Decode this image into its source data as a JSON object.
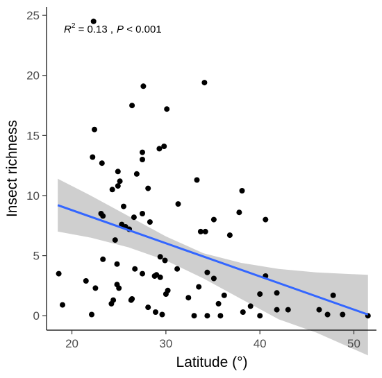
{
  "chart_data": {
    "type": "scatter",
    "xlabel": "Latitude (°)",
    "ylabel": "Insect richness",
    "xlim": [
      17.3,
      52.4
    ],
    "ylim": [
      -1.2,
      25.7
    ],
    "x_ticks": [
      20,
      30,
      40,
      50
    ],
    "y_ticks": [
      0,
      5,
      10,
      15,
      20,
      25
    ],
    "grid": false,
    "annotation": {
      "r_label": "R",
      "r_exp": "2",
      "r_value": " = 0.13 ,",
      "p_label": "P",
      "p_value": " < 0.001"
    },
    "colors": {
      "points": "#000000",
      "fit_line": "#3366ff",
      "ci_band": "#bfbfbf"
    },
    "fit": {
      "x": [
        18.5,
        51.5
      ],
      "y": [
        9.2,
        0.1
      ]
    },
    "ci_band": {
      "x": [
        18.5,
        22,
        26,
        30,
        34,
        38,
        42,
        46,
        51.5
      ],
      "lower": [
        7.0,
        6.5,
        5.7,
        4.6,
        3.1,
        1.4,
        -0.3,
        -1.4,
        -3.3
      ],
      "upper": [
        11.4,
        10.0,
        8.3,
        6.6,
        5.2,
        4.4,
        3.9,
        3.6,
        3.4
      ]
    },
    "points": [
      {
        "x": 22.3,
        "y": 24.5
      },
      {
        "x": 34.1,
        "y": 19.4
      },
      {
        "x": 27.6,
        "y": 19.1
      },
      {
        "x": 26.4,
        "y": 17.5
      },
      {
        "x": 30.1,
        "y": 17.2
      },
      {
        "x": 22.4,
        "y": 15.5
      },
      {
        "x": 29.8,
        "y": 14.1
      },
      {
        "x": 29.3,
        "y": 13.9
      },
      {
        "x": 27.5,
        "y": 13.6
      },
      {
        "x": 22.2,
        "y": 13.2
      },
      {
        "x": 27.5,
        "y": 13.0
      },
      {
        "x": 23.2,
        "y": 12.7
      },
      {
        "x": 24.9,
        "y": 12.0
      },
      {
        "x": 26.9,
        "y": 11.8
      },
      {
        "x": 25.1,
        "y": 11.2
      },
      {
        "x": 33.3,
        "y": 11.3
      },
      {
        "x": 24.9,
        "y": 10.8
      },
      {
        "x": 24.3,
        "y": 10.5
      },
      {
        "x": 28.1,
        "y": 10.6
      },
      {
        "x": 38.1,
        "y": 10.4
      },
      {
        "x": 31.3,
        "y": 9.3
      },
      {
        "x": 25.5,
        "y": 9.1
      },
      {
        "x": 23.1,
        "y": 8.5
      },
      {
        "x": 23.3,
        "y": 8.3
      },
      {
        "x": 27.5,
        "y": 8.5
      },
      {
        "x": 37.8,
        "y": 8.6
      },
      {
        "x": 26.6,
        "y": 8.2
      },
      {
        "x": 35.1,
        "y": 8.0
      },
      {
        "x": 40.6,
        "y": 8.0
      },
      {
        "x": 28.3,
        "y": 7.8
      },
      {
        "x": 25.3,
        "y": 7.6
      },
      {
        "x": 25.7,
        "y": 7.4
      },
      {
        "x": 26.1,
        "y": 7.2
      },
      {
        "x": 33.7,
        "y": 7.0
      },
      {
        "x": 34.2,
        "y": 7.0
      },
      {
        "x": 36.8,
        "y": 6.7
      },
      {
        "x": 24.6,
        "y": 6.3
      },
      {
        "x": 29.4,
        "y": 4.9
      },
      {
        "x": 23.3,
        "y": 4.7
      },
      {
        "x": 29.9,
        "y": 4.6
      },
      {
        "x": 24.8,
        "y": 4.3
      },
      {
        "x": 26.7,
        "y": 3.9
      },
      {
        "x": 31.2,
        "y": 3.9
      },
      {
        "x": 27.5,
        "y": 3.5
      },
      {
        "x": 18.6,
        "y": 3.5
      },
      {
        "x": 34.4,
        "y": 3.6
      },
      {
        "x": 28.8,
        "y": 3.3
      },
      {
        "x": 29.0,
        "y": 3.4
      },
      {
        "x": 35.1,
        "y": 3.1
      },
      {
        "x": 29.4,
        "y": 3.2
      },
      {
        "x": 21.5,
        "y": 2.9
      },
      {
        "x": 33.5,
        "y": 2.4
      },
      {
        "x": 24.8,
        "y": 2.6
      },
      {
        "x": 25.0,
        "y": 2.3
      },
      {
        "x": 22.5,
        "y": 2.3
      },
      {
        "x": 30.2,
        "y": 2.1
      },
      {
        "x": 30.0,
        "y": 1.8
      },
      {
        "x": 36.2,
        "y": 1.7
      },
      {
        "x": 40.0,
        "y": 1.8
      },
      {
        "x": 41.8,
        "y": 1.9
      },
      {
        "x": 47.8,
        "y": 1.7
      },
      {
        "x": 32.4,
        "y": 1.5
      },
      {
        "x": 26.4,
        "y": 1.4
      },
      {
        "x": 26.3,
        "y": 1.3
      },
      {
        "x": 24.4,
        "y": 1.3
      },
      {
        "x": 24.2,
        "y": 1.0
      },
      {
        "x": 35.6,
        "y": 1.0
      },
      {
        "x": 19.0,
        "y": 0.9
      },
      {
        "x": 39.0,
        "y": 0.8
      },
      {
        "x": 28.1,
        "y": 0.7
      },
      {
        "x": 43.0,
        "y": 0.5
      },
      {
        "x": 46.3,
        "y": 0.5
      },
      {
        "x": 41.8,
        "y": 0.5
      },
      {
        "x": 38.2,
        "y": 0.3
      },
      {
        "x": 28.9,
        "y": 0.3
      },
      {
        "x": 29.6,
        "y": 0.1
      },
      {
        "x": 22.1,
        "y": 0.1
      },
      {
        "x": 33.0,
        "y": 0.0
      },
      {
        "x": 34.4,
        "y": 0.0
      },
      {
        "x": 35.8,
        "y": 0.0
      },
      {
        "x": 40.0,
        "y": 0.0
      },
      {
        "x": 47.2,
        "y": 0.1
      },
      {
        "x": 48.8,
        "y": 0.1
      },
      {
        "x": 51.5,
        "y": 0.0
      },
      {
        "x": 40.6,
        "y": 3.3
      }
    ]
  }
}
